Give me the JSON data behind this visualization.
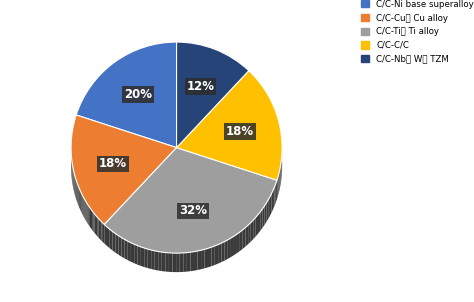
{
  "legend_labels": [
    "C/C-Ni base superalloy",
    "C/C-Cu， Cu alloy",
    "C/C-Ti， Ti alloy",
    "C/C-C/C",
    "C/C-Nb， W， TZM"
  ],
  "values": [
    20,
    18,
    32,
    18,
    12
  ],
  "colors": [
    "#4472c4",
    "#ed7d31",
    "#9e9e9e",
    "#ffc000",
    "#264478"
  ],
  "shadow_color": "#3a3a3a",
  "startangle": 90,
  "pct_labels": [
    "20%",
    "18%",
    "32%",
    "18%",
    "12%"
  ],
  "background_color": "#ffffff",
  "label_box_color": "#2d2d2d",
  "figsize": [
    4.74,
    3.02
  ],
  "dpi": 100
}
